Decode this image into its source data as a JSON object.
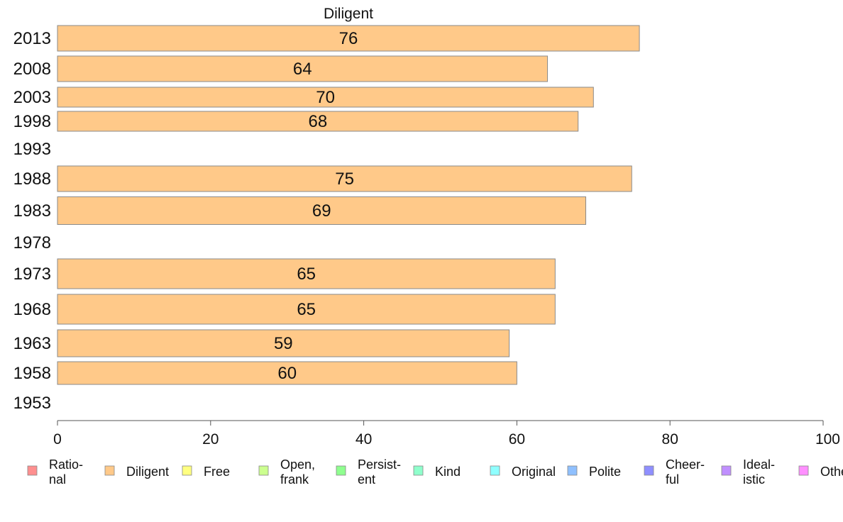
{
  "chart_data": {
    "type": "bar",
    "orientation": "horizontal",
    "title": "Diligent",
    "xlabel": "",
    "ylabel": "",
    "xlim": [
      0,
      100
    ],
    "xticks": [
      0,
      20,
      40,
      60,
      80,
      100
    ],
    "grid": false,
    "categories": [
      "2013",
      "2008",
      "2003",
      "1998",
      "1993",
      "1988",
      "1983",
      "1978",
      "1973",
      "1968",
      "1963",
      "1958",
      "1953"
    ],
    "values": [
      76,
      64,
      70,
      68,
      null,
      75,
      69,
      null,
      65,
      65,
      59,
      60,
      null
    ],
    "data_labels": [
      "76",
      "64",
      "70",
      "68",
      "",
      "75",
      "69",
      "",
      "65",
      "65",
      "59",
      "60",
      ""
    ],
    "bar_color": "#ffc989",
    "legend_position": "bottom",
    "legend": [
      {
        "lines": [
          "Ratio-",
          "nal"
        ],
        "color": "#ff8f8f"
      },
      {
        "lines": [
          "Diligent"
        ],
        "color": "#ffc989"
      },
      {
        "lines": [
          "Free"
        ],
        "color": "#ffff80"
      },
      {
        "lines": [
          "Open,",
          "frank"
        ],
        "color": "#ccff8f"
      },
      {
        "lines": [
          "Persist-",
          "ent"
        ],
        "color": "#8fff8f"
      },
      {
        "lines": [
          "Kind"
        ],
        "color": "#8fffcc"
      },
      {
        "lines": [
          "Original"
        ],
        "color": "#8fffff"
      },
      {
        "lines": [
          "Polite"
        ],
        "color": "#8fc0ff"
      },
      {
        "lines": [
          "Cheer-",
          "ful"
        ],
        "color": "#8f8fff"
      },
      {
        "lines": [
          "Ideal-",
          "istic"
        ],
        "color": "#c08fff"
      },
      {
        "lines": [
          "Other"
        ],
        "color": "#ff8fff"
      }
    ]
  }
}
